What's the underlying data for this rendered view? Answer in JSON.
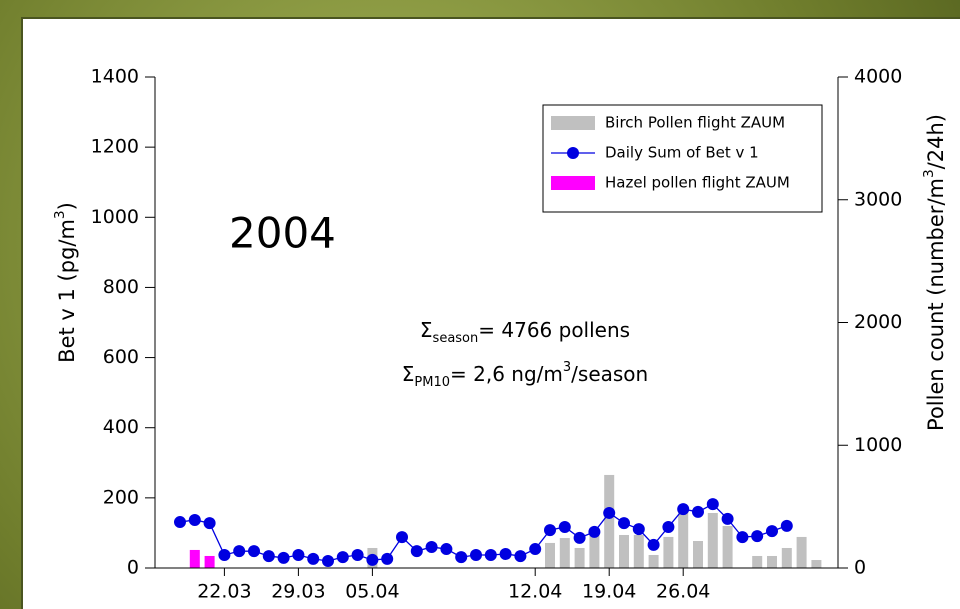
{
  "chart_data": {
    "type": "bar-line",
    "year_label": "2004",
    "y_label": {
      "text": "Bet v 1 (pg/m",
      "sup": "3",
      "end": ")"
    },
    "y2_label": {
      "text": "Pollen count (number/m",
      "sup": "3",
      "end": "/24h)"
    },
    "annotations": [
      {
        "symbol": "Σ",
        "sub": "season",
        "text": "= 4766 pollens"
      },
      {
        "symbol": "Σ",
        "sub": "PM10",
        "text": "= 2,6  ng/m",
        "sup": "3",
        "end": "/season"
      }
    ],
    "categories": [
      null,
      null,
      null,
      "22.03",
      null,
      null,
      null,
      null,
      "29.03",
      null,
      null,
      null,
      null,
      "05.04",
      null,
      null,
      null,
      null,
      null,
      null,
      null,
      null,
      null,
      null,
      "12.04",
      null,
      null,
      null,
      null,
      "19.04",
      null,
      null,
      null,
      null,
      "26.04",
      null,
      null,
      null,
      null,
      null,
      null,
      null,
      null,
      null
    ],
    "ylim": [
      0,
      1400
    ],
    "yticks": [
      0,
      200,
      400,
      600,
      800,
      1000,
      1200,
      1400
    ],
    "y2lim": [
      0,
      4000
    ],
    "y2ticks": [
      0,
      1000,
      2000,
      3000,
      4000
    ],
    "legend": "upper right",
    "series": [
      {
        "name": "Birch Pollen flight ZAUM",
        "type": "bar",
        "axis": "y2",
        "color": "#c0c0c0",
        "values": [
          0,
          0,
          0,
          0,
          0,
          0,
          0,
          0,
          0,
          0,
          0,
          0,
          0,
          163,
          0,
          0,
          0,
          0,
          0,
          0,
          0,
          0,
          0,
          0,
          0,
          204,
          244,
          163,
          301,
          758,
          269,
          269,
          106,
          253,
          464,
          220,
          448,
          342,
          0,
          98,
          98,
          163,
          253,
          65
        ]
      },
      {
        "name": "Daily Sum of Bet v 1",
        "type": "line",
        "color": "#0000e0",
        "values": [
          131,
          137,
          128,
          37,
          48,
          48,
          34,
          29,
          37,
          26,
          20,
          31,
          37,
          23,
          26,
          88,
          48,
          60,
          54,
          31,
          37,
          37,
          40,
          34,
          54,
          108,
          117,
          86,
          103,
          157,
          128,
          111,
          66,
          117,
          168,
          160,
          182,
          140,
          88,
          91,
          105,
          120,
          null,
          null
        ]
      },
      {
        "name": "Hazel pollen flight ZAUM",
        "type": "bar",
        "axis": "y2",
        "color": "#ff00ff",
        "values": [
          0,
          147,
          98,
          0,
          0,
          0,
          0,
          0,
          0,
          0,
          0,
          0,
          0,
          0,
          0,
          0,
          0,
          0,
          0,
          0,
          0,
          0,
          0,
          0,
          0,
          0,
          0,
          0,
          0,
          0,
          0,
          0,
          0,
          0,
          0,
          0,
          0,
          0,
          0,
          0,
          0,
          0,
          0,
          0
        ]
      }
    ]
  }
}
